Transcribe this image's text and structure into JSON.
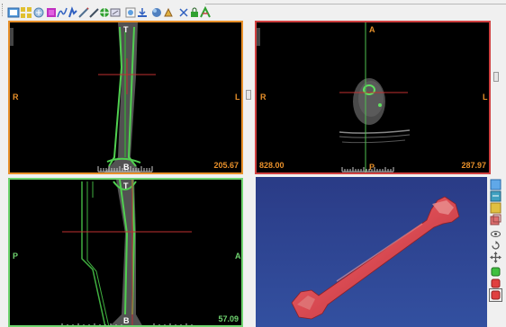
{
  "colors": {
    "axial": "#e8902a",
    "sagittal": "#6fd46f",
    "coronal": "#d04040",
    "view3d_bg": "#2a3f8a",
    "bone_model": "#d94a52"
  },
  "toolbar": {
    "icons": [
      "layout-1x1-icon",
      "layout-2x2-icon",
      "layout-grid-icon",
      "color-lut-icon",
      "curve-icon",
      "hand-icon",
      "pencil-icon",
      "pen-icon",
      "crosshair-icon",
      "eraser-icon",
      "calculator-icon",
      "import-icon",
      "sphere-icon",
      "paint-icon",
      "scissors-icon",
      "lock-icon",
      "settings-icon"
    ]
  },
  "views": {
    "top_left": {
      "top": "T",
      "bottom": "B",
      "left": "R",
      "right": "L",
      "value": "205.67"
    },
    "top_right": {
      "top": "A",
      "bottom": "P",
      "left": "R",
      "right": "L",
      "value_left": "828.00",
      "value": "287.97"
    },
    "bottom_left": {
      "top": "T",
      "bottom": "B",
      "left": "P",
      "right": "A",
      "value": "57.09"
    }
  },
  "side_toolbar": {
    "icons": [
      "view-front-icon",
      "view-side-icon",
      "view-top-icon",
      "color-cube-icon",
      "eye-icon",
      "rotate-icon",
      "pan-icon",
      "green-box-icon",
      "red-box-icon",
      "red-box-selected-icon"
    ]
  }
}
